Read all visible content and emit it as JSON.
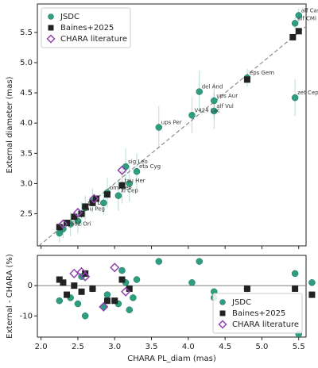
{
  "chart_data": [
    {
      "type": "scatter",
      "ylabel": "External diameter (mas)",
      "xlim": [
        1.95,
        5.6
      ],
      "ylim": [
        1.97,
        5.97
      ],
      "xticks": [
        2.0,
        2.5,
        3.0,
        3.5,
        4.0,
        4.5,
        5.0,
        5.5
      ],
      "yticks": [
        {
          "value": 2.5,
          "label": "2.5"
        },
        {
          "value": 3.0,
          "label": "3.0"
        },
        {
          "value": 3.5,
          "label": "3.5"
        },
        {
          "value": 4.0,
          "label": "4.0"
        },
        {
          "value": 4.5,
          "label": "4.5"
        },
        {
          "value": 5.0,
          "label": "5.0"
        },
        {
          "value": 5.5,
          "label": "5.5"
        }
      ],
      "identity_line": true,
      "legend": "upper left",
      "series": [
        {
          "name": "JSDC",
          "color": "#2e9e80",
          "marker": "circle",
          "x": [
            5.5,
            5.45,
            4.8,
            5.45,
            4.15,
            4.35,
            4.35,
            4.05,
            3.6,
            3.15,
            3.2,
            3.3,
            3.1,
            3.05,
            2.9,
            2.7,
            2.6,
            2.5,
            2.55,
            2.4,
            2.25,
            2.3,
            2.85
          ],
          "values": [
            5.78,
            5.65,
            4.75,
            4.42,
            4.52,
            4.37,
            4.2,
            4.13,
            3.93,
            3.28,
            3.0,
            3.2,
            2.97,
            2.8,
            2.85,
            2.72,
            2.6,
            2.38,
            2.5,
            2.33,
            2.18,
            2.25,
            2.68
          ],
          "errors": [
            0.12,
            0.1,
            0.15,
            0.3,
            0.35,
            0.3,
            0.3,
            0.3,
            0.35,
            0.3,
            0.3,
            0.3,
            0.3,
            0.25,
            0.25,
            0.2,
            0.2,
            0.2,
            0.2,
            0.2,
            0.15,
            0.15,
            0.2
          ],
          "labels": [
            "alf Cas",
            "alf CMi",
            "eps Gem",
            "zet Cep",
            "del And",
            "ups Aur",
            "alf Vul",
            "V424 Lac",
            "ups Per",
            "sig Leo",
            null,
            "eta Cyg",
            "tau Her",
            "xi Cep",
            "omi Leo",
            null,
            "psi Lac",
            null,
            "tau Peg",
            null,
            null,
            "phi02 Ori",
            null
          ]
        },
        {
          "name": "Baines+2025",
          "color": "#222222",
          "marker": "square",
          "x": [
            5.5,
            5.42,
            4.8,
            3.1,
            2.9,
            2.75,
            2.6,
            2.45,
            2.35,
            2.25,
            2.55,
            2.7
          ],
          "values": [
            5.52,
            5.42,
            4.72,
            2.97,
            2.82,
            2.75,
            2.62,
            2.45,
            2.35,
            2.28,
            2.5,
            2.68
          ]
        },
        {
          "name": "CHARA literature",
          "color": "#8e44ad",
          "marker": "diamond",
          "x": [
            3.1,
            2.72,
            2.5,
            2.3
          ],
          "values": [
            3.22,
            2.75,
            2.52,
            2.33
          ]
        }
      ]
    },
    {
      "type": "scatter",
      "xlabel": "CHARA PL_diam (mas)",
      "ylabel": "External - CHARA (%)",
      "xlim": [
        1.95,
        5.6
      ],
      "ylim": [
        -17,
        10
      ],
      "xticks": [
        {
          "value": 2.0,
          "label": "2.0"
        },
        {
          "value": 2.5,
          "label": "2.5"
        },
        {
          "value": 3.0,
          "label": "3.0"
        },
        {
          "value": 3.5,
          "label": "3.5"
        },
        {
          "value": 4.0,
          "label": "4.0"
        },
        {
          "value": 4.5,
          "label": "4.5"
        },
        {
          "value": 5.0,
          "label": "5.0"
        },
        {
          "value": 5.5,
          "label": "5.5"
        }
      ],
      "yticks": [
        -10,
        0
      ],
      "hline": 0,
      "legend": "lower right",
      "series": [
        {
          "name": "JSDC",
          "color": "#2e9e80",
          "marker": "circle",
          "x": [
            2.25,
            2.4,
            2.5,
            2.55,
            2.6,
            2.7,
            2.85,
            2.9,
            3.05,
            3.1,
            3.15,
            3.2,
            3.25,
            3.3,
            3.6,
            4.05,
            4.15,
            4.35,
            4.35,
            4.8,
            5.45,
            5.5,
            5.68
          ],
          "values": [
            -5,
            -4,
            -6,
            3,
            -10,
            -1,
            -7,
            -3,
            -6,
            5,
            1,
            -8,
            -4,
            2,
            8,
            1,
            8,
            -2,
            -4,
            -1,
            4,
            -16,
            1
          ]
        },
        {
          "name": "Baines+2025",
          "color": "#222222",
          "marker": "square",
          "x": [
            2.25,
            2.3,
            2.35,
            2.45,
            2.55,
            2.6,
            2.7,
            2.9,
            3.0,
            3.1,
            3.2,
            4.8,
            5.45,
            5.68
          ],
          "values": [
            2,
            1,
            -3,
            0,
            -2,
            4,
            -1,
            -5,
            -5,
            2,
            -1,
            -1,
            -1,
            -3
          ]
        },
        {
          "name": "CHARA literature",
          "color": "#8e44ad",
          "marker": "diamond",
          "x": [
            2.45,
            2.55,
            2.6,
            2.85,
            3.0,
            3.15
          ],
          "values": [
            4,
            4.5,
            3,
            -7,
            6,
            -2
          ]
        }
      ]
    }
  ]
}
